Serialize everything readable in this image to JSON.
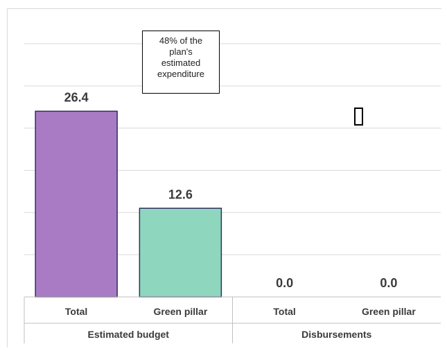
{
  "chart_data": {
    "type": "bar",
    "categories": [
      "Total",
      "Green pillar",
      "Total",
      "Green pillar"
    ],
    "groups": [
      "Estimated budget",
      "Disbursements"
    ],
    "values": [
      26.4,
      12.6,
      0.0,
      0.0
    ],
    "value_labels": [
      "26.4",
      "12.6",
      "0.0",
      "0.0"
    ],
    "colors": [
      "#a97bc4",
      "#8fd6be",
      "#a97bc4",
      "#8fd6be"
    ],
    "ylim": [
      0,
      36
    ],
    "grid": true,
    "legend": "none"
  },
  "annotation": {
    "lines": [
      "48% of the",
      "plan's",
      "estimated",
      "expenditure"
    ]
  },
  "glyph": {
    "icon": "missing-glyph-box"
  }
}
